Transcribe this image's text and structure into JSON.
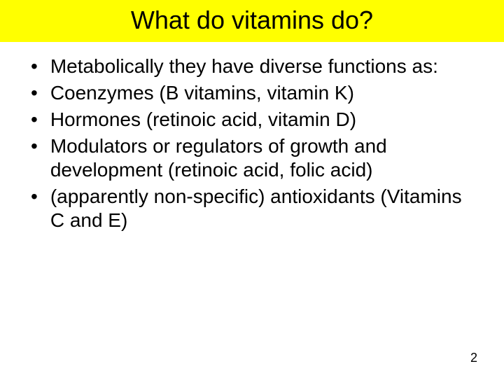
{
  "slide": {
    "title": "What do vitamins do?",
    "title_bg_color": "#ffff00",
    "title_text_color": "#000000",
    "title_fontsize": 36,
    "background_color": "#ffffff",
    "bullets": [
      "Metabolically they have diverse functions as:",
      "Coenzymes (B vitamins, vitamin K)",
      "Hormones (retinoic acid, vitamin D)",
      "Modulators or regulators of growth and development (retinoic acid, folic acid)",
      "(apparently non-specific) antioxidants (Vitamins C and E)"
    ],
    "bullet_fontsize": 28,
    "bullet_text_color": "#000000",
    "bullet_marker": "•",
    "page_number": "2",
    "page_number_fontsize": 18
  }
}
